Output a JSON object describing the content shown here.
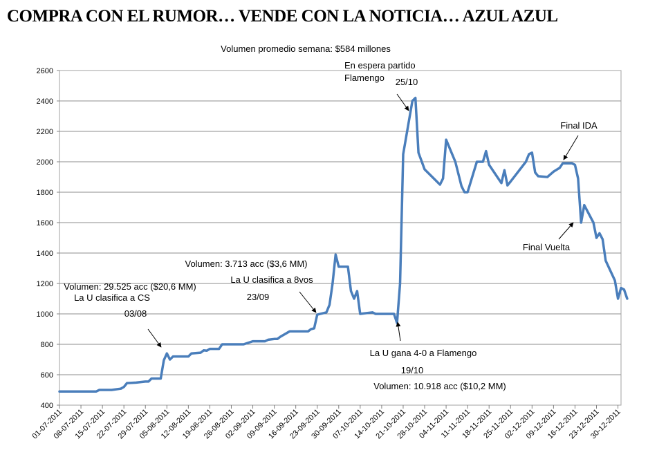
{
  "title": "COMPRA CON EL RUMOR… VENDE CON LA NOTICIA… AZUL AZUL",
  "chart_data": {
    "type": "line",
    "subtitle": "Volumen promedio semana: $584 millones",
    "ylim": [
      400,
      2600
    ],
    "yticks": [
      400,
      600,
      800,
      1000,
      1200,
      1400,
      1600,
      1800,
      2000,
      2200,
      2400,
      2600
    ],
    "xlim": [
      "2011-07-01",
      "2011-12-31"
    ],
    "xticks": [
      "01-07-2011",
      "08-07-2011",
      "15-07-2011",
      "22-07-2011",
      "29-07-2011",
      "05-08-2011",
      "12-08-2011",
      "19-08-2011",
      "26-08-2011",
      "02-09-2011",
      "09-09-2011",
      "16-09-2011",
      "23-09-2011",
      "30-09-2011",
      "07-10-2011",
      "14-10-2011",
      "21-10-2011",
      "28-10-2011",
      "04-11-2011",
      "11-11-2011",
      "18-11-2011",
      "25-11-2011",
      "02-12-2011",
      "09-12-2011",
      "16-12-2011",
      "23-12-2011",
      "30-12-2011"
    ],
    "grid": "horizontal",
    "color": "#4a7ebb",
    "series": [
      {
        "points": [
          [
            "2011-07-01",
            490
          ],
          [
            "2011-07-08",
            490
          ],
          [
            "2011-07-13",
            490
          ],
          [
            "2011-07-14",
            500
          ],
          [
            "2011-07-18",
            500
          ],
          [
            "2011-07-21",
            508
          ],
          [
            "2011-07-22",
            520
          ],
          [
            "2011-07-23",
            545
          ],
          [
            "2011-07-26",
            548
          ],
          [
            "2011-07-29",
            555
          ],
          [
            "2011-07-30",
            555
          ],
          [
            "2011-07-31",
            575
          ],
          [
            "2011-08-02",
            575
          ],
          [
            "2011-08-03",
            575
          ],
          [
            "2011-08-04",
            695
          ],
          [
            "2011-08-05",
            740
          ],
          [
            "2011-08-06",
            700
          ],
          [
            "2011-08-07",
            720
          ],
          [
            "2011-08-12",
            720
          ],
          [
            "2011-08-13",
            740
          ],
          [
            "2011-08-16",
            745
          ],
          [
            "2011-08-17",
            760
          ],
          [
            "2011-08-18",
            758
          ],
          [
            "2011-08-19",
            770
          ],
          [
            "2011-08-22",
            770
          ],
          [
            "2011-08-23",
            800
          ],
          [
            "2011-08-29",
            800
          ],
          [
            "2011-08-30",
            800
          ],
          [
            "2011-09-02",
            820
          ],
          [
            "2011-09-05",
            820
          ],
          [
            "2011-09-06",
            820
          ],
          [
            "2011-09-07",
            830
          ],
          [
            "2011-09-09",
            835
          ],
          [
            "2011-09-10",
            835
          ],
          [
            "2011-09-11",
            850
          ],
          [
            "2011-09-14",
            885
          ],
          [
            "2011-09-19",
            885
          ],
          [
            "2011-09-20",
            885
          ],
          [
            "2011-09-21",
            900
          ],
          [
            "2011-09-22",
            905
          ],
          [
            "2011-09-23",
            995
          ],
          [
            "2011-09-25",
            1005
          ],
          [
            "2011-09-26",
            1010
          ],
          [
            "2011-09-27",
            1060
          ],
          [
            "2011-09-28",
            1200
          ],
          [
            "2011-09-29",
            1390
          ],
          [
            "2011-09-30",
            1310
          ],
          [
            "2011-10-03",
            1310
          ],
          [
            "2011-10-04",
            1150
          ],
          [
            "2011-10-05",
            1100
          ],
          [
            "2011-10-06",
            1150
          ],
          [
            "2011-10-07",
            1000
          ],
          [
            "2011-10-11",
            1010
          ],
          [
            "2011-10-12",
            1000
          ],
          [
            "2011-10-18",
            1000
          ],
          [
            "2011-10-19",
            940
          ],
          [
            "2011-10-20",
            1200
          ],
          [
            "2011-10-21",
            2050
          ],
          [
            "2011-10-24",
            2400
          ],
          [
            "2011-10-25",
            2420
          ],
          [
            "2011-10-26",
            2060
          ],
          [
            "2011-10-28",
            1950
          ],
          [
            "2011-11-02",
            1850
          ],
          [
            "2011-11-03",
            1890
          ],
          [
            "2011-11-04",
            2145
          ],
          [
            "2011-11-07",
            2000
          ],
          [
            "2011-11-09",
            1840
          ],
          [
            "2011-11-10",
            1800
          ],
          [
            "2011-11-11",
            1800
          ],
          [
            "2011-11-14",
            2000
          ],
          [
            "2011-11-16",
            2000
          ],
          [
            "2011-11-17",
            2070
          ],
          [
            "2011-11-18",
            1980
          ],
          [
            "2011-11-22",
            1860
          ],
          [
            "2011-11-23",
            1945
          ],
          [
            "2011-11-24",
            1845
          ],
          [
            "2011-11-25",
            1870
          ],
          [
            "2011-11-30",
            2000
          ],
          [
            "2011-12-01",
            2050
          ],
          [
            "2011-12-02",
            2060
          ],
          [
            "2011-12-03",
            1930
          ],
          [
            "2011-12-04",
            1905
          ],
          [
            "2011-12-07",
            1900
          ],
          [
            "2011-12-09",
            1935
          ],
          [
            "2011-12-11",
            1960
          ],
          [
            "2011-12-12",
            1990
          ],
          [
            "2011-12-15",
            1990
          ],
          [
            "2011-12-16",
            1980
          ],
          [
            "2011-12-17",
            1890
          ],
          [
            "2011-12-18",
            1600
          ],
          [
            "2011-12-19",
            1715
          ],
          [
            "2011-12-22",
            1600
          ],
          [
            "2011-12-23",
            1500
          ],
          [
            "2011-12-24",
            1530
          ],
          [
            "2011-12-25",
            1490
          ],
          [
            "2011-12-26",
            1350
          ],
          [
            "2011-12-29",
            1220
          ],
          [
            "2011-12-30",
            1100
          ],
          [
            "2011-12-31",
            1170
          ],
          [
            "2012-01-01",
            1160
          ],
          [
            "2012-01-02",
            1100
          ]
        ]
      }
    ],
    "annotations": [
      {
        "lines": [
          "Volumen: 29.525 acc ($20,6 MM)",
          "La U clasifica a CS",
          "",
          "03/08"
        ]
      },
      {
        "lines": [
          "Volumen: 3.713 acc ($3,6 MM)",
          "",
          "La U clasifica a 8vos",
          "",
          "23/09"
        ]
      },
      {
        "lines": [
          "En espera partido",
          "Flamengo",
          "25/10"
        ]
      },
      {
        "lines": [
          "La U gana 4-0 a Flamengo",
          "",
          "19/10",
          "",
          "Volumen: 10.918 acc ($10,2 MM)"
        ]
      },
      {
        "lines": [
          "Final IDA"
        ]
      },
      {
        "lines": [
          "Final Vuelta"
        ]
      }
    ]
  }
}
